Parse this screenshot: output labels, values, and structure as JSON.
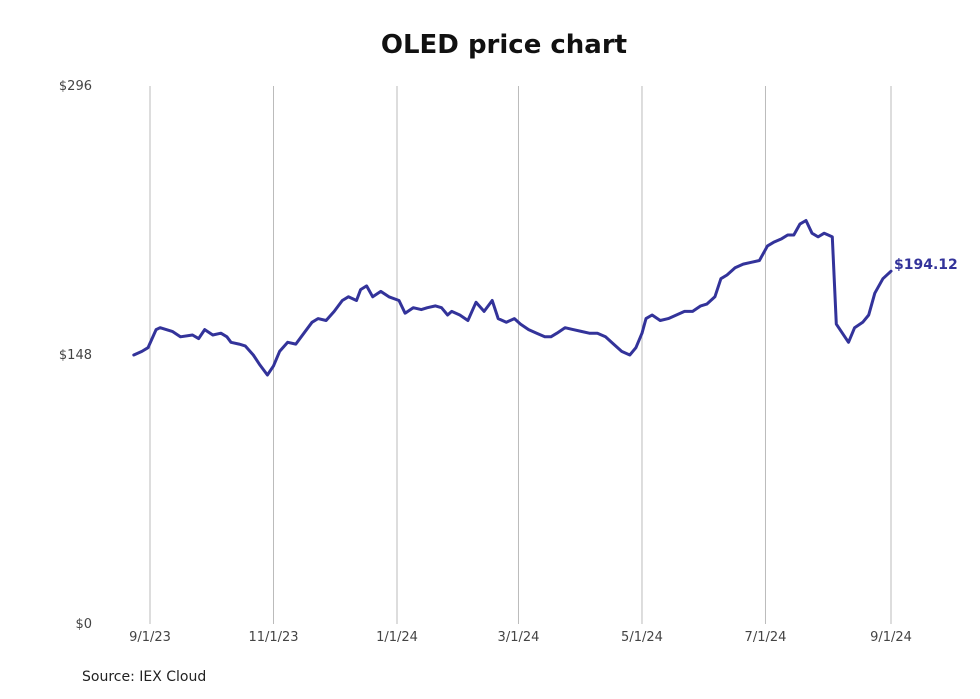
{
  "chart_data": {
    "type": "line",
    "title": "OLED price chart",
    "source": "Source: IEX Cloud",
    "xlabel": "",
    "ylabel": "",
    "x_ticks": [
      "9/1/23",
      "11/1/23",
      "1/1/24",
      "3/1/24",
      "5/1/24",
      "7/1/24",
      "9/1/24"
    ],
    "y_ticks": [
      "$0",
      "$148",
      "$296"
    ],
    "ylim": [
      0,
      296
    ],
    "xlim": [
      "2023-08-10",
      "2024-09-10"
    ],
    "grid": "vertical",
    "legend": "none",
    "colors": {
      "line": "#33339a",
      "grid": "#bbbbbb",
      "label": "#33339a"
    },
    "end_label": "$194.12",
    "series": [
      {
        "values": [
          [
            "2023-08-24",
            148
          ],
          [
            "2023-08-28",
            150
          ],
          [
            "2023-08-31",
            152
          ],
          [
            "2023-09-04",
            162
          ],
          [
            "2023-09-06",
            163
          ],
          [
            "2023-09-12",
            161
          ],
          [
            "2023-09-16",
            158
          ],
          [
            "2023-09-22",
            159
          ],
          [
            "2023-09-25",
            157
          ],
          [
            "2023-09-28",
            162
          ],
          [
            "2023-10-02",
            159
          ],
          [
            "2023-10-06",
            160
          ],
          [
            "2023-10-09",
            158
          ],
          [
            "2023-10-11",
            155
          ],
          [
            "2023-10-15",
            154
          ],
          [
            "2023-10-18",
            153
          ],
          [
            "2023-10-22",
            148
          ],
          [
            "2023-10-25",
            143
          ],
          [
            "2023-10-29",
            137
          ],
          [
            "2023-11-01",
            142
          ],
          [
            "2023-11-04",
            150
          ],
          [
            "2023-11-08",
            155
          ],
          [
            "2023-11-12",
            154
          ],
          [
            "2023-11-16",
            160
          ],
          [
            "2023-11-20",
            166
          ],
          [
            "2023-11-23",
            168
          ],
          [
            "2023-11-27",
            167
          ],
          [
            "2023-12-01",
            172
          ],
          [
            "2023-12-05",
            178
          ],
          [
            "2023-12-08",
            180
          ],
          [
            "2023-12-12",
            178
          ],
          [
            "2023-12-14",
            184
          ],
          [
            "2023-12-17",
            186
          ],
          [
            "2023-12-20",
            180
          ],
          [
            "2023-12-24",
            183
          ],
          [
            "2023-12-28",
            180
          ],
          [
            "2024-01-02",
            178
          ],
          [
            "2024-01-05",
            171
          ],
          [
            "2024-01-09",
            174
          ],
          [
            "2024-01-13",
            173
          ],
          [
            "2024-01-16",
            174
          ],
          [
            "2024-01-20",
            175
          ],
          [
            "2024-01-23",
            174
          ],
          [
            "2024-01-26",
            170
          ],
          [
            "2024-01-28",
            172
          ],
          [
            "2024-02-01",
            170
          ],
          [
            "2024-02-05",
            167
          ],
          [
            "2024-02-09",
            177
          ],
          [
            "2024-02-13",
            172
          ],
          [
            "2024-02-17",
            178
          ],
          [
            "2024-02-20",
            168
          ],
          [
            "2024-02-24",
            166
          ],
          [
            "2024-02-28",
            168
          ],
          [
            "2024-03-02",
            165
          ],
          [
            "2024-03-06",
            162
          ],
          [
            "2024-03-10",
            160
          ],
          [
            "2024-03-14",
            158
          ],
          [
            "2024-03-17",
            158
          ],
          [
            "2024-03-20",
            160
          ],
          [
            "2024-03-24",
            163
          ],
          [
            "2024-03-28",
            162
          ],
          [
            "2024-04-01",
            161
          ],
          [
            "2024-04-05",
            160
          ],
          [
            "2024-04-09",
            160
          ],
          [
            "2024-04-13",
            158
          ],
          [
            "2024-04-17",
            154
          ],
          [
            "2024-04-21",
            150
          ],
          [
            "2024-04-25",
            148
          ],
          [
            "2024-04-28",
            152
          ],
          [
            "2024-05-01",
            160
          ],
          [
            "2024-05-03",
            168
          ],
          [
            "2024-05-06",
            170
          ],
          [
            "2024-05-10",
            167
          ],
          [
            "2024-05-14",
            168
          ],
          [
            "2024-05-18",
            170
          ],
          [
            "2024-05-22",
            172
          ],
          [
            "2024-05-26",
            172
          ],
          [
            "2024-05-30",
            175
          ],
          [
            "2024-06-02",
            176
          ],
          [
            "2024-06-06",
            180
          ],
          [
            "2024-06-09",
            190
          ],
          [
            "2024-06-12",
            192
          ],
          [
            "2024-06-16",
            196
          ],
          [
            "2024-06-20",
            198
          ],
          [
            "2024-06-24",
            199
          ],
          [
            "2024-06-28",
            200
          ],
          [
            "2024-07-02",
            208
          ],
          [
            "2024-07-05",
            210
          ],
          [
            "2024-07-09",
            212
          ],
          [
            "2024-07-12",
            214
          ],
          [
            "2024-07-15",
            214
          ],
          [
            "2024-07-18",
            220
          ],
          [
            "2024-07-21",
            222
          ],
          [
            "2024-07-24",
            215
          ],
          [
            "2024-07-27",
            213
          ],
          [
            "2024-07-30",
            215
          ],
          [
            "2024-08-01",
            214
          ],
          [
            "2024-08-03",
            213
          ],
          [
            "2024-08-05",
            165
          ],
          [
            "2024-08-08",
            160
          ],
          [
            "2024-08-11",
            155
          ],
          [
            "2024-08-14",
            163
          ],
          [
            "2024-08-18",
            166
          ],
          [
            "2024-08-21",
            170
          ],
          [
            "2024-08-24",
            182
          ],
          [
            "2024-08-28",
            190
          ],
          [
            "2024-09-01",
            194.12
          ]
        ]
      }
    ]
  }
}
